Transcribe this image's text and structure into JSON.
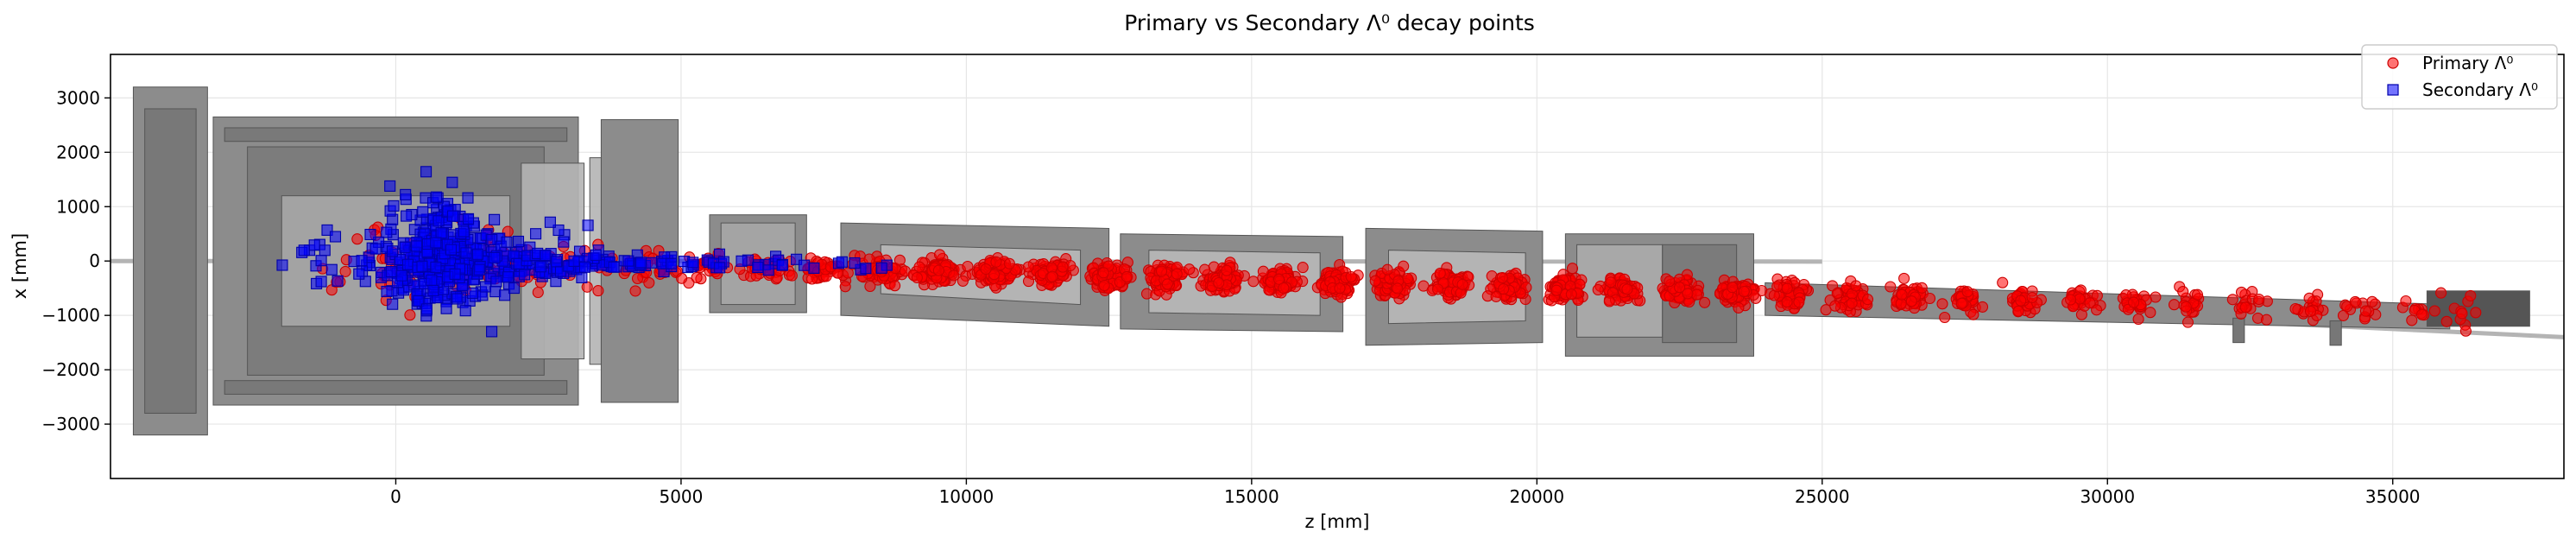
{
  "chart_data": {
    "type": "scatter",
    "title": "Primary vs Secondary Λ⁰ decay points",
    "xlabel": "z [mm]",
    "ylabel": "x [mm]",
    "xlim": [
      -5000,
      38000
    ],
    "ylim": [
      -4000,
      3800
    ],
    "xticks": [
      0,
      5000,
      10000,
      15000,
      20000,
      25000,
      30000,
      35000
    ],
    "yticks": [
      -3000,
      -2000,
      -1000,
      0,
      1000,
      2000,
      3000
    ],
    "xtick_labels": [
      "0",
      "5000",
      "10000",
      "15000",
      "20000",
      "25000",
      "30000",
      "35000"
    ],
    "ytick_labels": [
      "−3000",
      "−2000",
      "−1000",
      "0",
      "1000",
      "2000",
      "3000"
    ],
    "grid": true,
    "legend_position": "top-right",
    "background": "LHCb detector geometry (grey) drawn behind the points",
    "series": [
      {
        "name": "Primary Λ⁰",
        "marker": "circle",
        "color": "#ff0000",
        "band": [
          [
            -300,
            -150,
            500,
            250,
            10
          ],
          [
            500,
            -50,
            1100,
            350,
            40
          ],
          [
            1500,
            -40,
            1200,
            300,
            40
          ],
          [
            3000,
            -80,
            600,
            200,
            25
          ],
          [
            4500,
            -150,
            300,
            150,
            25
          ],
          [
            5500,
            -120,
            250,
            120,
            35
          ],
          [
            6500,
            -130,
            250,
            110,
            35
          ],
          [
            7500,
            -150,
            220,
            110,
            45
          ],
          [
            8500,
            -170,
            200,
            110,
            70
          ],
          [
            9500,
            -190,
            180,
            110,
            90
          ],
          [
            10500,
            -210,
            170,
            110,
            100
          ],
          [
            11500,
            -250,
            160,
            110,
            100
          ],
          [
            12500,
            -280,
            150,
            110,
            100
          ],
          [
            13500,
            -310,
            150,
            110,
            100
          ],
          [
            14500,
            -340,
            150,
            110,
            100
          ],
          [
            15500,
            -370,
            150,
            110,
            100
          ],
          [
            16500,
            -400,
            150,
            110,
            95
          ],
          [
            17500,
            -420,
            150,
            110,
            90
          ],
          [
            18500,
            -450,
            150,
            110,
            90
          ],
          [
            19500,
            -470,
            150,
            110,
            85
          ],
          [
            20500,
            -500,
            150,
            110,
            85
          ],
          [
            21500,
            -530,
            150,
            110,
            80
          ],
          [
            22500,
            -560,
            150,
            110,
            75
          ],
          [
            23500,
            -590,
            150,
            110,
            70
          ],
          [
            24500,
            -620,
            150,
            110,
            60
          ],
          [
            25500,
            -650,
            150,
            110,
            50
          ],
          [
            26500,
            -680,
            150,
            110,
            45
          ],
          [
            27500,
            -710,
            150,
            110,
            40
          ],
          [
            28500,
            -730,
            150,
            110,
            35
          ],
          [
            29500,
            -760,
            150,
            110,
            30
          ],
          [
            30500,
            -790,
            150,
            120,
            25
          ],
          [
            31500,
            -820,
            150,
            120,
            20
          ],
          [
            32500,
            -850,
            160,
            120,
            18
          ],
          [
            33500,
            -870,
            160,
            130,
            16
          ],
          [
            34500,
            -900,
            170,
            130,
            14
          ],
          [
            35500,
            -920,
            170,
            130,
            12
          ],
          [
            36200,
            -940,
            180,
            130,
            10
          ]
        ]
      },
      {
        "name": "Secondary Λ⁰",
        "marker": "square",
        "color": "#0000ff",
        "band": [
          [
            700,
            0,
            450,
            450,
            220
          ],
          [
            1300,
            50,
            300,
            380,
            90
          ],
          [
            600,
            200,
            350,
            550,
            50
          ],
          [
            1000,
            700,
            200,
            350,
            20
          ],
          [
            -1300,
            100,
            350,
            300,
            14
          ],
          [
            -500,
            -50,
            250,
            300,
            12
          ],
          [
            2200,
            -20,
            300,
            180,
            45
          ],
          [
            2700,
            200,
            250,
            350,
            10
          ],
          [
            2700,
            -80,
            250,
            130,
            20
          ],
          [
            3400,
            -20,
            300,
            100,
            30
          ],
          [
            4100,
            -40,
            250,
            80,
            18
          ],
          [
            4800,
            -40,
            250,
            60,
            14
          ],
          [
            5500,
            -50,
            250,
            60,
            10
          ],
          [
            6300,
            -60,
            250,
            60,
            8
          ],
          [
            7100,
            -70,
            250,
            60,
            6
          ],
          [
            7900,
            -80,
            250,
            60,
            4
          ],
          [
            8500,
            -90,
            200,
            60,
            3
          ]
        ]
      }
    ]
  },
  "colors": {
    "grid": "#e6e6e6",
    "detector_fill": "#8c8c8c",
    "detector_dark": "#6f6f6f",
    "detector_light": "#b4b4b4",
    "primary_edge": "#cc0000",
    "secondary_edge": "#0000aa"
  }
}
